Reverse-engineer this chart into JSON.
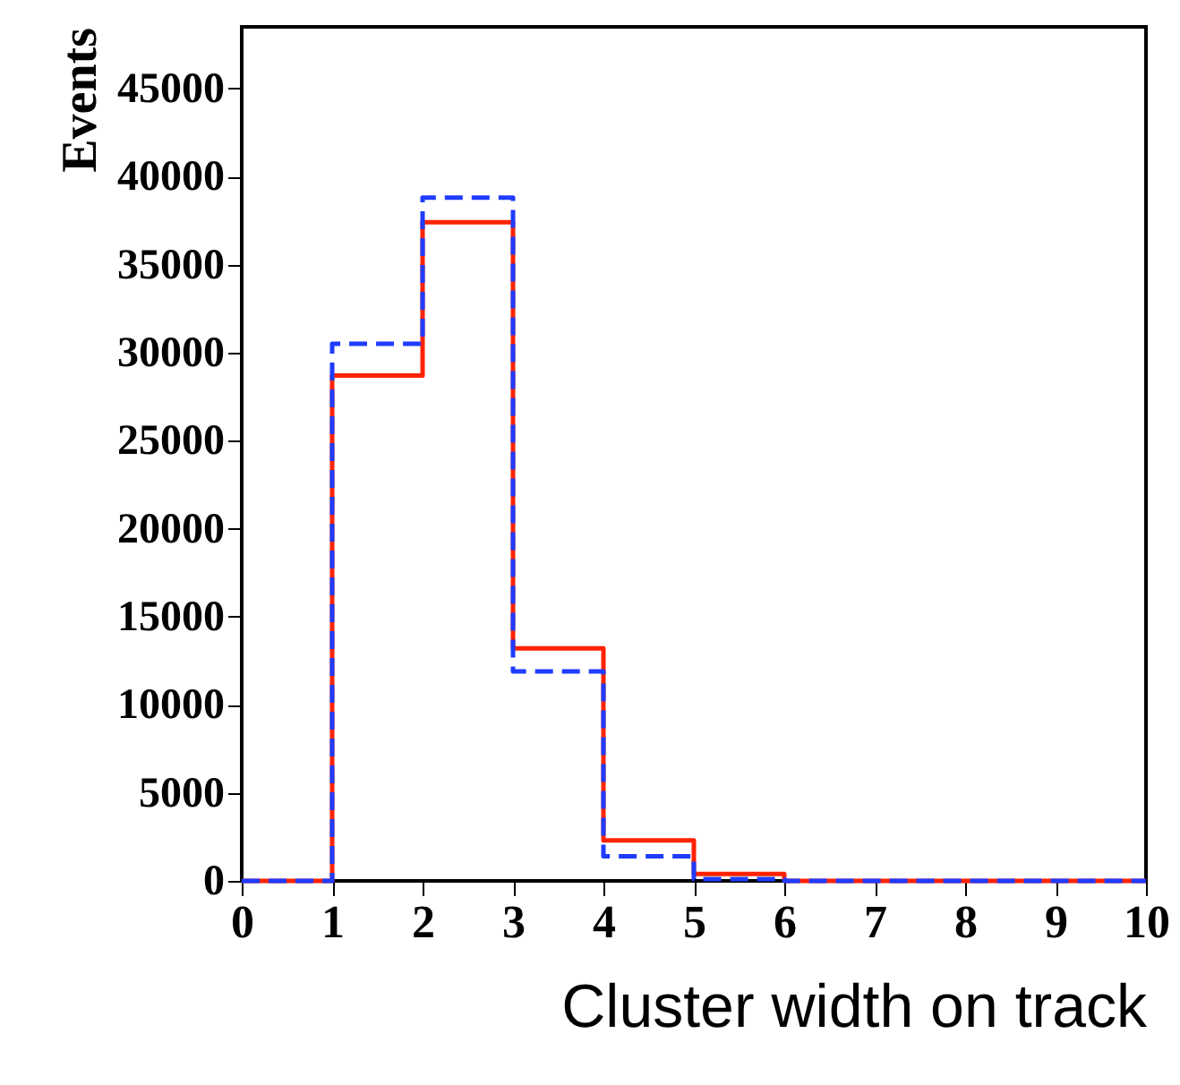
{
  "chart_data": {
    "type": "histogram",
    "xlabel": "Cluster width on track",
    "ylabel": "Events",
    "bins": [
      0,
      1,
      2,
      3,
      4,
      5,
      6,
      7,
      8,
      9,
      10
    ],
    "series": [
      {
        "color": "#ff2200",
        "line_style": "solid",
        "values": [
          0,
          28700,
          37400,
          13200,
          2300,
          400,
          0,
          0,
          0,
          0
        ]
      },
      {
        "color": "#1f3cff",
        "line_style": "dashed",
        "values": [
          0,
          30500,
          38800,
          11900,
          1400,
          100,
          0,
          0,
          0,
          0
        ]
      }
    ],
    "xlim": [
      0,
      10
    ],
    "xticks": [
      0,
      1,
      2,
      3,
      4,
      5,
      6,
      7,
      8,
      9,
      10
    ],
    "ylim": [
      0,
      48500
    ],
    "yticks": [
      0,
      5000,
      10000,
      15000,
      20000,
      25000,
      30000,
      35000,
      40000,
      45000
    ]
  }
}
